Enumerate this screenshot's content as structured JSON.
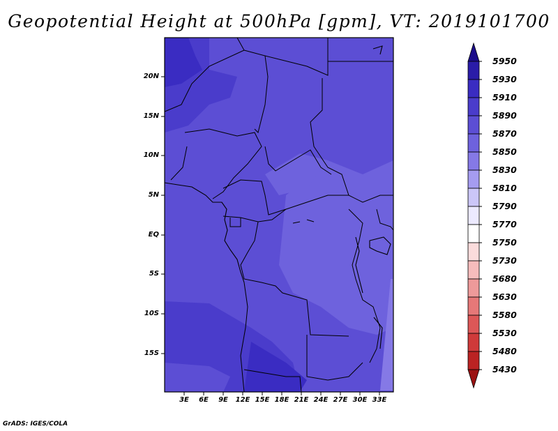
{
  "title": "Geopotential Height at 500hPa [gpm], VT: 2019101700",
  "footer": "GrADS: IGES/COLA",
  "map": {
    "lat_labels": [
      "20N",
      "15N",
      "10N",
      "5N",
      "EQ",
      "5S",
      "10S",
      "15S"
    ],
    "lon_labels": [
      "3E",
      "6E",
      "9E",
      "12E",
      "15E",
      "18E",
      "21E",
      "24E",
      "27E",
      "30E",
      "33E"
    ]
  },
  "colorbar": {
    "levels": [
      "5950",
      "5930",
      "5910",
      "5890",
      "5870",
      "5850",
      "5830",
      "5810",
      "5790",
      "5770",
      "5750",
      "5730",
      "5680",
      "5630",
      "5580",
      "5530",
      "5480",
      "5430"
    ],
    "colors": [
      "#1c0d8a",
      "#2a1ca8",
      "#3a2cc2",
      "#4a3ccb",
      "#5c4ed4",
      "#6e62dd",
      "#8579e6",
      "#a59cf0",
      "#cbc6f8",
      "#eceaff",
      "#ffffff",
      "#fbdcdc",
      "#f6bcbc",
      "#ee9a9a",
      "#e67878",
      "#dd5757",
      "#cf3a3a",
      "#bb2323",
      "#9b1212"
    ]
  }
}
